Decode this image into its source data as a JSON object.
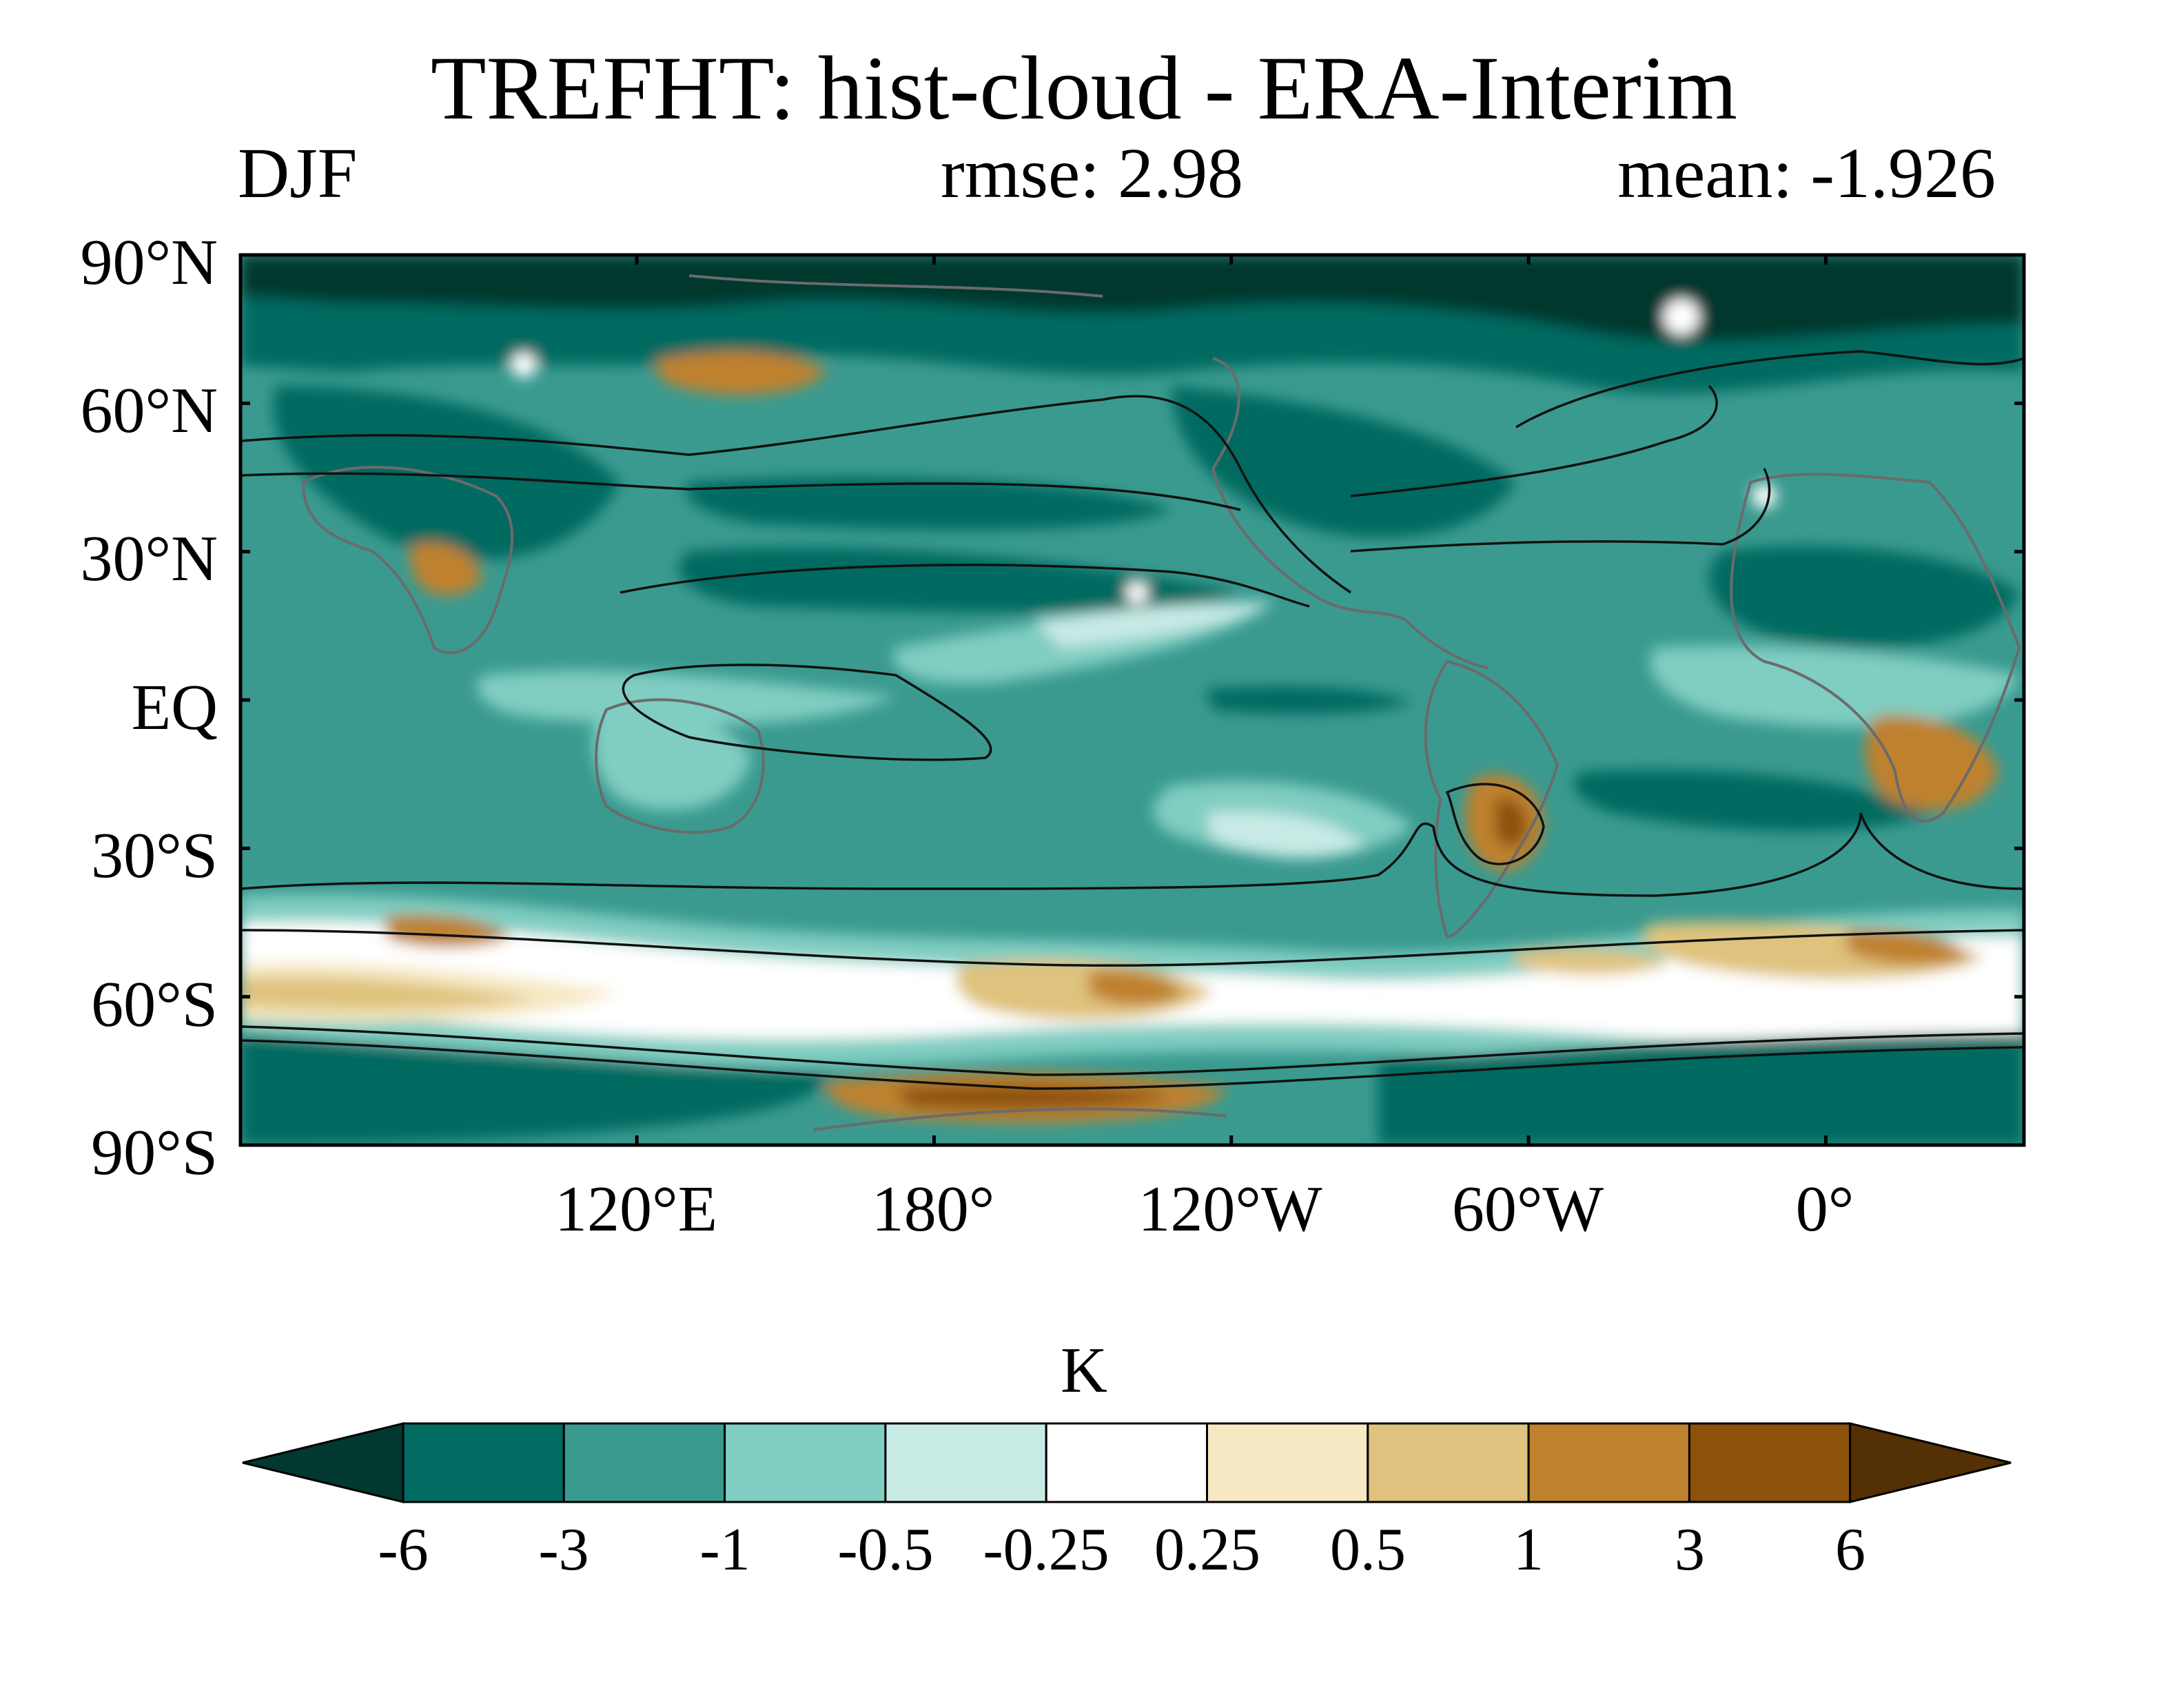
{
  "title": "TREFHT: hist-cloud - ERA-Interim",
  "season": "DJF",
  "rmse": "rmse: 2.98",
  "mean": "mean: -1.926",
  "y_axis": {
    "ticks": [
      "90°N",
      "60°N",
      "30°N",
      "EQ",
      "30°S",
      "60°S",
      "90°S"
    ],
    "values": [
      90,
      60,
      30,
      0,
      -30,
      -60,
      -90
    ]
  },
  "x_axis": {
    "ticks": [
      "120°E",
      "180°",
      "120°W",
      "60°W",
      "0°"
    ],
    "values": [
      120,
      180,
      240,
      300,
      360
    ],
    "range": [
      40,
      400
    ]
  },
  "colorbar": {
    "unit": "K",
    "levels": [
      "-6",
      "-3",
      "-1",
      "-0.5",
      "-0.25",
      "0.25",
      "0.5",
      "1",
      "3",
      "6"
    ],
    "colors": [
      "#01382f",
      "#016b61",
      "#3a9a90",
      "#80cdc1",
      "#c7eae5",
      "#ffffff",
      "#f6e8c3",
      "#dfc27d",
      "#bf812d",
      "#8c510a",
      "#543005"
    ]
  }
}
